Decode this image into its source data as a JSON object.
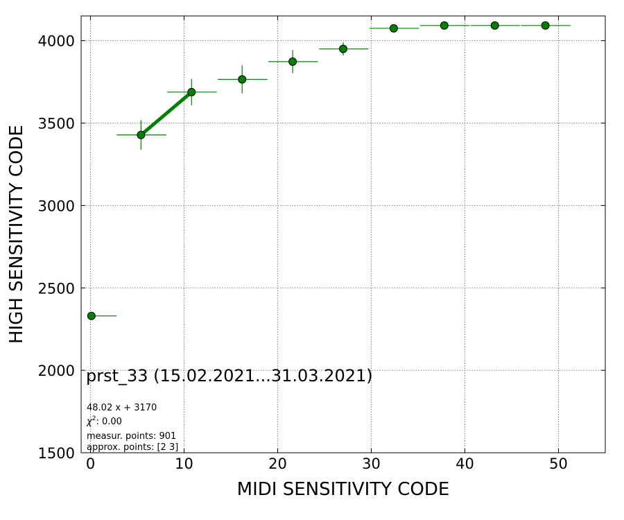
{
  "chart_data": {
    "type": "scatter",
    "xlabel": "MIDI SENSITIVITY CODE",
    "ylabel": "HIGH SENSITIVITY CODE",
    "xlim": [
      -1,
      55
    ],
    "ylim": [
      1500,
      4150
    ],
    "xticks": [
      0,
      10,
      20,
      30,
      40,
      50
    ],
    "yticks": [
      1500,
      2000,
      2500,
      3000,
      3500,
      4000
    ],
    "grid": true,
    "colors": {
      "points": "#008000",
      "fit_line": "#008000",
      "grid": "#808080",
      "axes": "#000000"
    },
    "series": [
      {
        "points": [
          {
            "x": 0.1,
            "y": 2330,
            "xerr_low": 0,
            "xerr_high": 2.7,
            "yerr": 0
          },
          {
            "x": 5.4,
            "y": 3428,
            "xerr_low": 2.6,
            "xerr_high": 2.7,
            "yerr": 90
          },
          {
            "x": 10.8,
            "y": 3688,
            "xerr_low": 2.6,
            "xerr_high": 2.7,
            "yerr": 80
          },
          {
            "x": 16.2,
            "y": 3765,
            "xerr_low": 2.6,
            "xerr_high": 2.7,
            "yerr": 85
          },
          {
            "x": 21.6,
            "y": 3873,
            "xerr_low": 2.6,
            "xerr_high": 2.7,
            "yerr": 70
          },
          {
            "x": 27.0,
            "y": 3950,
            "xerr_low": 2.6,
            "xerr_high": 2.7,
            "yerr": 40
          },
          {
            "x": 32.4,
            "y": 4075,
            "xerr_low": 2.6,
            "xerr_high": 2.7,
            "yerr": 0
          },
          {
            "x": 37.8,
            "y": 4092,
            "xerr_low": 2.6,
            "xerr_high": 2.7,
            "yerr": 0
          },
          {
            "x": 43.2,
            "y": 4092,
            "xerr_low": 2.6,
            "xerr_high": 2.7,
            "yerr": 0
          },
          {
            "x": 48.6,
            "y": 4092,
            "xerr_low": 2.6,
            "xerr_high": 2.7,
            "yerr": 0
          }
        ]
      }
    ],
    "fit_line": {
      "x": [
        5.4,
        10.8
      ],
      "y": [
        3428,
        3688
      ]
    },
    "annotations": {
      "title": "prst_33 (15.02.2021...31.03.2021)",
      "equation": "48.02 x + 3170",
      "chi2_symbol": "χ",
      "chi2_exponent": "2",
      "chi2_rest": ": 0.00",
      "measur_points": "measur. points: 901",
      "approx_points": "approx. points: [2 3]"
    }
  }
}
